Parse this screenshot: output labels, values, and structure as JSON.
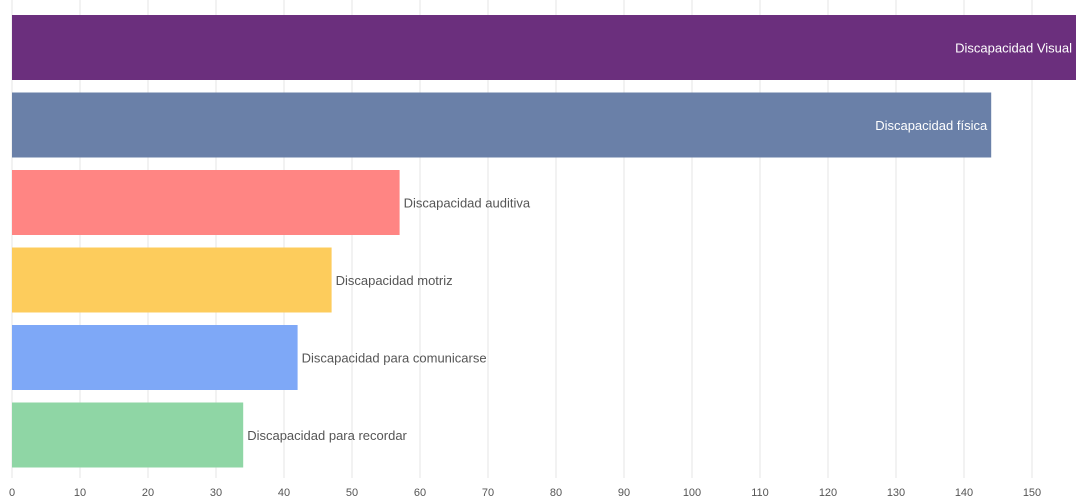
{
  "chart_data": {
    "type": "bar",
    "orientation": "horizontal",
    "categories": [
      "Discapacidad Visual",
      "Discapacidad física",
      "Discapacidad auditiva",
      "Discapacidad motriz",
      "Discapacidad para comunicarse",
      "Discapacidad para recordar"
    ],
    "values": [
      157,
      144,
      57,
      47,
      42,
      34
    ],
    "colors": [
      "#6b2f7d",
      "#6a80a8",
      "#ff8583",
      "#fdcc5c",
      "#7ea8f7",
      "#8fd6a5"
    ],
    "label_colors_inside": "#ffffff",
    "label_colors_outside": "#555555",
    "label_inside": [
      true,
      true,
      false,
      false,
      false,
      false
    ],
    "title": "",
    "xlabel": "",
    "ylabel": "",
    "xlim": [
      0,
      157
    ],
    "x_ticks": [
      0,
      10,
      20,
      30,
      40,
      50,
      60,
      70,
      80,
      90,
      100,
      110,
      120,
      130,
      140,
      150
    ],
    "grid": true,
    "legend": "none"
  }
}
